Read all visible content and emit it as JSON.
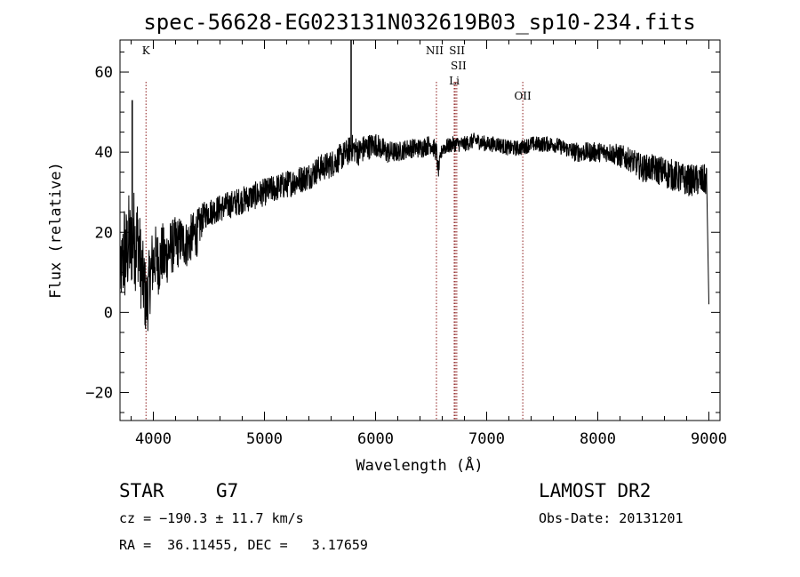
{
  "chart_data": {
    "type": "line",
    "title": "spec-56628-EG023131N032619B03_sp10-234.fits",
    "xlabel": "Wavelength (Å)",
    "ylabel": "Flux (relative)",
    "xlim": [
      3700,
      9100
    ],
    "ylim": [
      -27,
      68
    ],
    "x_ticks": [
      4000,
      5000,
      6000,
      7000,
      8000,
      9000
    ],
    "x_tick_labels": [
      "4000",
      "5000",
      "6000",
      "7000",
      "8000",
      "9000"
    ],
    "y_ticks": [
      -20,
      0,
      20,
      40,
      60
    ],
    "y_tick_labels": [
      "−20",
      "0",
      "20",
      "40",
      "60"
    ],
    "grid": false,
    "spectrum": {
      "x": [
        3700,
        3720,
        3740,
        3760,
        3780,
        3800,
        3820,
        3840,
        3860,
        3880,
        3900,
        3920,
        3935,
        3950,
        3968,
        3990,
        4020,
        4050,
        4080,
        4100,
        4150,
        4200,
        4250,
        4300,
        4350,
        4400,
        4450,
        4500,
        4600,
        4700,
        4800,
        4900,
        5000,
        5100,
        5200,
        5300,
        5400,
        5500,
        5600,
        5700,
        5750,
        5780,
        5800,
        5850,
        5900,
        6000,
        6100,
        6200,
        6300,
        6400,
        6500,
        6550,
        6563,
        6600,
        6700,
        6800,
        6900,
        7000,
        7100,
        7200,
        7300,
        7400,
        7500,
        7600,
        7700,
        7800,
        7900,
        8000,
        8100,
        8200,
        8300,
        8400,
        8500,
        8600,
        8700,
        8800,
        8900,
        8980,
        9000
      ],
      "y": [
        8,
        12,
        15,
        14,
        18,
        16,
        20,
        17,
        19,
        13,
        9,
        6,
        2,
        4,
        8,
        12,
        14,
        12,
        15,
        13,
        16,
        17,
        18,
        17,
        19,
        20,
        24,
        25,
        26,
        27,
        28,
        29,
        30,
        31,
        32,
        33,
        34,
        36,
        37,
        39,
        40,
        41,
        41,
        40,
        41,
        42,
        40,
        40,
        41,
        41,
        42,
        40,
        35,
        41,
        42,
        42,
        43,
        42,
        42,
        41,
        41,
        42,
        42,
        42,
        41,
        40,
        40,
        40,
        40,
        39,
        38,
        36,
        36,
        35,
        34,
        33,
        33,
        33,
        2
      ],
      "noise_amplitude": [
        6,
        10,
        14,
        12,
        12,
        11,
        12,
        12,
        11,
        11,
        10,
        10,
        9,
        9,
        9,
        9,
        8,
        8,
        8,
        8,
        7,
        7,
        6,
        6,
        6,
        6,
        3.5,
        3.5,
        3.5,
        3.5,
        3.5,
        3.5,
        3.5,
        3.5,
        3.5,
        3.5,
        3.5,
        3.5,
        3.5,
        3.5,
        3.5,
        3.5,
        3.5,
        3.5,
        3.5,
        3,
        3,
        2.5,
        2.5,
        2.5,
        2.5,
        2.5,
        2,
        2,
        2,
        2,
        2,
        2,
        2,
        2,
        2,
        2,
        2,
        2,
        2,
        2.5,
        2.5,
        2.5,
        2.5,
        3,
        3,
        3.5,
        3.5,
        4,
        4,
        4,
        4,
        4,
        2
      ]
    },
    "spikes": [
      {
        "x": 5780,
        "y": 68
      },
      {
        "x": 3810,
        "y": 53
      }
    ],
    "lines": [
      {
        "name": "K",
        "x": 3934,
        "labels": [
          "K"
        ]
      },
      {
        "name": "NII",
        "x": 6548,
        "labels": [
          "NII"
        ]
      },
      {
        "name": "SII",
        "x": 6717,
        "labels": [
          "SII"
        ]
      },
      {
        "name": "SII",
        "x": 6731,
        "labels": [
          "SII"
        ]
      },
      {
        "name": "Li",
        "x": 6708,
        "labels": [
          "Li"
        ]
      },
      {
        "name": "OII",
        "x": 7325,
        "labels": [
          "OII"
        ]
      }
    ],
    "line_color": "#8b1a1a",
    "trace_color": "#000000"
  },
  "info": {
    "object_class": "STAR",
    "subclass": "G7",
    "survey": "LAMOST DR2",
    "cz": "cz = −190.3 ± 11.7 km/s",
    "obs_date": "Obs-Date: 20131201",
    "coords": "RA =  36.11455, DEC =   3.17659"
  }
}
